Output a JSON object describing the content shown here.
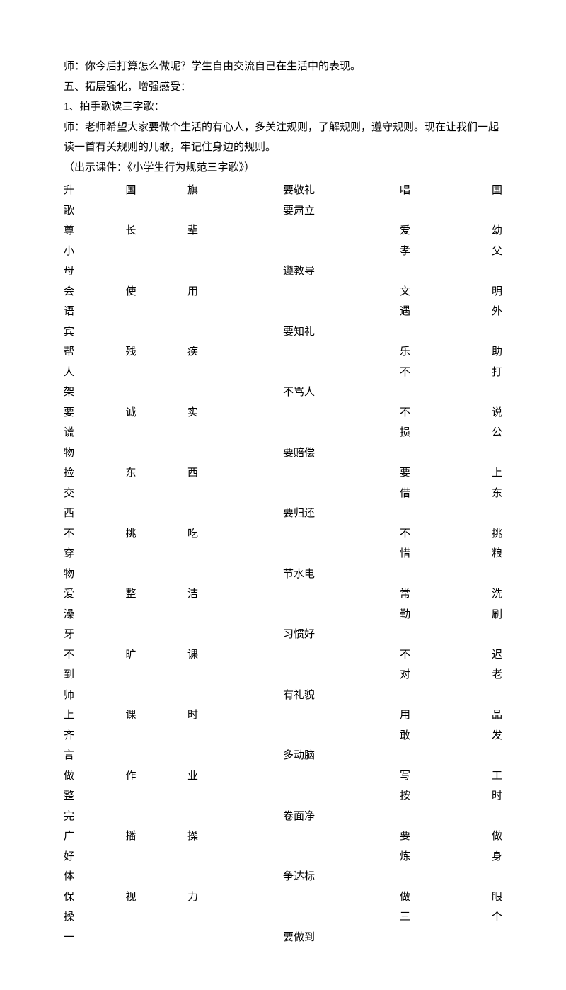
{
  "intro": {
    "line1": "师：你今后打算怎么做呢？学生自由交流自己在生活中的表现。",
    "line2": "五、拓展强化，增强感受：",
    "line3": "1、拍手歌读三字歌：",
    "line4": "师：老师希望大家要做个生活的有心人，多关注规则，了解规则，遵守规则。现在让我们一起读一首有关规则的儿歌，牢记住身边的规则。",
    "line5": "（出示课件：《小学生行为规范三字歌》）"
  },
  "rows": [
    {
      "l": "升国旗",
      "m": "要敬礼",
      "r": "唱　国"
    },
    {
      "l": "歌",
      "m": "要肃立",
      "r": ""
    },
    {
      "l": "尊　　长　　辈",
      "m": "",
      "r": "爱　　幼"
    },
    {
      "l": "小",
      "m": "",
      "r": "孝　　父"
    },
    {
      "l": "母",
      "m": "遵教导",
      "r": ""
    },
    {
      "l": "会　　使　　用",
      "m": "",
      "r": "文　　明"
    },
    {
      "l": "语",
      "m": "",
      "r": "遇　　外"
    },
    {
      "l": "宾",
      "m": "要知礼",
      "r": ""
    },
    {
      "l": "帮　　残　　疾",
      "m": "",
      "r": "乐　　助"
    },
    {
      "l": "人",
      "m": "",
      "r": "不　　打"
    },
    {
      "l": "架",
      "m": "不骂人",
      "r": ""
    },
    {
      "l": "要　　诚　　实",
      "m": "",
      "r": "不　　说"
    },
    {
      "l": "谎",
      "m": "",
      "r": "损　　公"
    },
    {
      "l": "物",
      "m": "要赔偿",
      "r": ""
    },
    {
      "l": "捡　　东　　西",
      "m": "",
      "r": "要　　上"
    },
    {
      "l": "交",
      "m": "",
      "r": "借　　东"
    },
    {
      "l": "西",
      "m": "要归还",
      "r": ""
    },
    {
      "l": "不　　挑　　吃",
      "m": "",
      "r": "不　　挑"
    },
    {
      "l": "穿",
      "m": "",
      "r": "惜　　粮"
    },
    {
      "l": "物",
      "m": "节水电",
      "r": ""
    },
    {
      "l": "爱　　整　　洁",
      "m": "",
      "r": "常　　洗"
    },
    {
      "l": "澡",
      "m": "",
      "r": "勤　　刷"
    },
    {
      "l": "牙",
      "m": "习惯好",
      "r": ""
    },
    {
      "l": "不　　旷　　课",
      "m": "",
      "r": "不　　迟"
    },
    {
      "l": "到",
      "m": "",
      "r": "对　　老"
    },
    {
      "l": "师",
      "m": "有礼貌",
      "r": ""
    },
    {
      "l": "上　　课　　时",
      "m": "",
      "r": "用　　品"
    },
    {
      "l": "齐",
      "m": "",
      "r": "敢　　发"
    },
    {
      "l": "言",
      "m": "多动脑",
      "r": ""
    },
    {
      "l": "做　　作　　业",
      "m": "",
      "r": "写　　工"
    },
    {
      "l": "整",
      "m": "",
      "r": "按　　时"
    },
    {
      "l": "完",
      "m": "卷面净",
      "r": ""
    },
    {
      "l": "广　　播　　操",
      "m": "",
      "r": "要　　做"
    },
    {
      "l": "好",
      "m": "",
      "r": "炼　　身"
    },
    {
      "l": "体",
      "m": "争达标",
      "r": ""
    },
    {
      "l": "保　　视　　力",
      "m": "",
      "r": "做　　眼"
    },
    {
      "l": "操",
      "m": "",
      "r": "三　　个"
    },
    {
      "l": "一",
      "m": "要做到",
      "r": ""
    }
  ],
  "style": {
    "bg": "#ffffff",
    "fg": "#000000",
    "fontSize": 15,
    "lineHeight": 1.9
  }
}
